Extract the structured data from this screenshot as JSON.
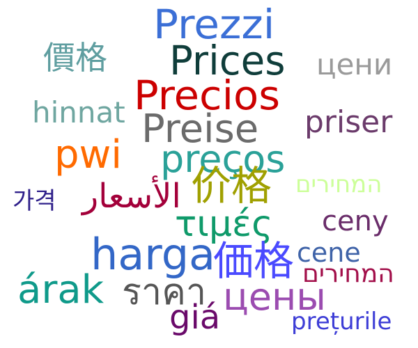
{
  "words": [
    {
      "text": "Prezzi",
      "color": "#3b6fd6"
    },
    {
      "text": "Prices",
      "color": "#0f3d3a"
    },
    {
      "text": "Precios",
      "color": "#cc0000"
    },
    {
      "text": "Preise",
      "color": "#6b6b6b"
    },
    {
      "text": "preços",
      "color": "#2aa198"
    },
    {
      "text": "價格",
      "color": "#5f9ea0"
    },
    {
      "text": "цени",
      "color": "#9a9a9a"
    },
    {
      "text": "hinnat",
      "color": "#6fa6a0"
    },
    {
      "text": "priser",
      "color": "#6b3b6b"
    },
    {
      "text": "pwi",
      "color": "#ff6a00"
    },
    {
      "text": "价格",
      "color": "#a0a000"
    },
    {
      "text": "המחירים",
      "color": "#ccff99"
    },
    {
      "text": "가격",
      "color": "#2e1f8a"
    },
    {
      "text": "الأسعار",
      "color": "#a3003a"
    },
    {
      "text": "τιμές",
      "color": "#0f9a6a"
    },
    {
      "text": "ceny",
      "color": "#6a2d6a"
    },
    {
      "text": "harga",
      "color": "#3367c7"
    },
    {
      "text": "価格",
      "color": "#4a4aff"
    },
    {
      "text": "cene",
      "color": "#3f63a8"
    },
    {
      "text": "המחירים",
      "color": "#a20f4a"
    },
    {
      "text": "árak",
      "color": "#0f9a8a"
    },
    {
      "text": "ราคา",
      "color": "#555555"
    },
    {
      "text": "цены",
      "color": "#9b4cb0"
    },
    {
      "text": "giá",
      "color": "#6a0a6a"
    },
    {
      "text": "prețurile",
      "color": "#3d3dd6"
    }
  ]
}
